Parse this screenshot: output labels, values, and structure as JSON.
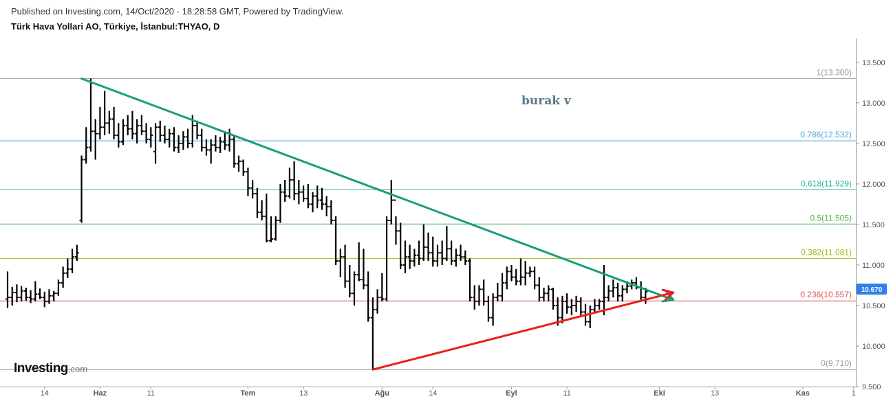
{
  "header": {
    "published": "Published on Investing.com, 14/Oct/2020 - 18:28:58 GMT, Powered by TradingView.",
    "symbol": "Türk Hava Yollari AO, Türkiye, İstanbul:THYAO, D"
  },
  "logo": {
    "main": "Investing",
    "suffix": ".com"
  },
  "author_label": "burak v",
  "colors": {
    "bars": "#000000",
    "trend_down": "#1a9e7c",
    "trend_up": "#e8211d",
    "price_tag": "#2f80ed",
    "axis": "#999999"
  },
  "chart_data": {
    "type": "ohlc",
    "title": "Türk Hava Yollari AO, Türkiye, İstanbul:THYAO, D",
    "ylim": [
      9.5,
      13.6
    ],
    "y_ticks": [
      "13.500",
      "13.000",
      "12.500",
      "12.000",
      "11.500",
      "11.000",
      "10.500",
      "10.000",
      "9.500"
    ],
    "x_ticks": [
      "14",
      "Haz",
      "11",
      "Tem",
      "13",
      "Ağu",
      "14",
      "Eyl",
      "11",
      "Eki",
      "13",
      "Kas",
      "1"
    ],
    "last_price": "10.670",
    "fibonacci": [
      {
        "label": "1(13.300)",
        "value": 13.3,
        "color": "#999999"
      },
      {
        "label": "0.786(12.532)",
        "value": 12.532,
        "color": "#4aa8d8"
      },
      {
        "label": "0.618(11.929)",
        "value": 11.929,
        "color": "#2bb39a"
      },
      {
        "label": "0.5(11.505)",
        "value": 11.505,
        "color": "#4caf50"
      },
      {
        "label": "0.382(11.081)",
        "value": 11.081,
        "color": "#a8b820"
      },
      {
        "label": "0.236(10.557)",
        "value": 10.557,
        "color": "#e05050"
      },
      {
        "label": "0(9.710)",
        "value": 9.71,
        "color": "#999999"
      }
    ],
    "trendlines": [
      {
        "name": "descending",
        "from": {
          "bar": 16,
          "price": 13.3
        },
        "to": {
          "bar": 144,
          "price": 10.57
        },
        "color": "#1a9e7c"
      },
      {
        "name": "ascending",
        "from": {
          "bar": 79,
          "price": 9.71
        },
        "to": {
          "bar": 144,
          "price": 10.66
        },
        "color": "#e8211d"
      }
    ],
    "bars": [
      [
        10.58,
        10.92,
        10.47,
        10.6
      ],
      [
        10.6,
        10.73,
        10.5,
        10.66
      ],
      [
        10.66,
        10.76,
        10.54,
        10.6
      ],
      [
        10.6,
        10.74,
        10.55,
        10.68
      ],
      [
        10.68,
        10.72,
        10.56,
        10.6
      ],
      [
        10.6,
        10.69,
        10.53,
        10.58
      ],
      [
        10.58,
        10.8,
        10.55,
        10.64
      ],
      [
        10.64,
        10.71,
        10.58,
        10.6
      ],
      [
        10.6,
        10.67,
        10.48,
        10.55
      ],
      [
        10.55,
        10.7,
        10.52,
        10.62
      ],
      [
        10.62,
        10.68,
        10.55,
        10.65
      ],
      [
        10.65,
        10.82,
        10.62,
        10.78
      ],
      [
        10.78,
        10.98,
        10.72,
        10.9
      ],
      [
        10.9,
        11.08,
        10.84,
        10.95
      ],
      [
        10.95,
        11.2,
        10.9,
        11.1
      ],
      [
        11.1,
        11.25,
        11.05,
        11.15
      ],
      [
        11.55,
        12.35,
        11.52,
        12.3
      ],
      [
        12.3,
        12.7,
        12.25,
        12.45
      ],
      [
        12.45,
        13.3,
        12.4,
        12.65
      ],
      [
        12.65,
        12.8,
        12.3,
        12.62
      ],
      [
        12.62,
        12.95,
        12.55,
        12.7
      ],
      [
        12.7,
        13.15,
        12.6,
        12.75
      ],
      [
        12.75,
        12.9,
        12.62,
        12.8
      ],
      [
        12.8,
        12.95,
        12.55,
        12.6
      ],
      [
        12.6,
        12.75,
        12.45,
        12.52
      ],
      [
        12.52,
        12.8,
        12.48,
        12.72
      ],
      [
        12.72,
        12.85,
        12.6,
        12.68
      ],
      [
        12.68,
        12.9,
        12.55,
        12.62
      ],
      [
        12.62,
        12.8,
        12.5,
        12.72
      ],
      [
        12.72,
        12.85,
        12.6,
        12.65
      ],
      [
        12.65,
        12.75,
        12.5,
        12.55
      ],
      [
        12.55,
        12.7,
        12.45,
        12.6
      ],
      [
        12.4,
        12.75,
        12.25,
        12.7
      ],
      [
        12.7,
        12.78,
        12.52,
        12.6
      ],
      [
        12.6,
        12.72,
        12.5,
        12.55
      ],
      [
        12.55,
        12.68,
        12.45,
        12.62
      ],
      [
        12.62,
        12.7,
        12.4,
        12.45
      ],
      [
        12.45,
        12.6,
        12.38,
        12.5
      ],
      [
        12.5,
        12.65,
        12.42,
        12.58
      ],
      [
        12.58,
        12.68,
        12.44,
        12.5
      ],
      [
        12.5,
        12.85,
        12.45,
        12.72
      ],
      [
        12.72,
        12.78,
        12.55,
        12.6
      ],
      [
        12.6,
        12.68,
        12.4,
        12.45
      ],
      [
        12.45,
        12.55,
        12.35,
        12.42
      ],
      [
        12.42,
        12.55,
        12.25,
        12.48
      ],
      [
        12.48,
        12.6,
        12.4,
        12.45
      ],
      [
        12.45,
        12.58,
        12.38,
        12.52
      ],
      [
        12.52,
        12.65,
        12.42,
        12.48
      ],
      [
        12.48,
        12.68,
        12.4,
        12.55
      ],
      [
        12.55,
        12.6,
        12.2,
        12.25
      ],
      [
        12.25,
        12.35,
        12.15,
        12.28
      ],
      [
        12.28,
        12.3,
        12.1,
        12.15
      ],
      [
        12.15,
        12.2,
        11.85,
        11.95
      ],
      [
        11.95,
        12.05,
        11.82,
        11.88
      ],
      [
        11.88,
        11.95,
        11.58,
        11.65
      ],
      [
        11.65,
        11.8,
        11.55,
        11.6
      ],
      [
        11.6,
        11.88,
        11.28,
        11.3
      ],
      [
        11.3,
        11.6,
        11.28,
        11.32
      ],
      [
        11.32,
        11.6,
        11.3,
        11.55
      ],
      [
        11.55,
        12.0,
        11.52,
        11.9
      ],
      [
        11.9,
        12.05,
        11.78,
        11.85
      ],
      [
        11.85,
        12.2,
        11.82,
        12.05
      ],
      [
        12.05,
        12.28,
        11.8,
        11.88
      ],
      [
        11.88,
        12.05,
        11.75,
        11.9
      ],
      [
        11.9,
        11.98,
        11.78,
        11.82
      ],
      [
        11.82,
        12.0,
        11.7,
        11.75
      ],
      [
        11.75,
        11.9,
        11.65,
        11.85
      ],
      [
        11.85,
        11.98,
        11.7,
        11.8
      ],
      [
        11.8,
        11.95,
        11.68,
        11.75
      ],
      [
        11.75,
        11.85,
        11.6,
        11.72
      ],
      [
        11.72,
        11.8,
        11.5,
        11.55
      ],
      [
        11.55,
        11.6,
        11.0,
        11.05
      ],
      [
        11.05,
        11.2,
        10.85,
        11.1
      ],
      [
        11.1,
        11.25,
        10.72,
        10.8
      ],
      [
        10.8,
        11.0,
        10.6,
        10.65
      ],
      [
        10.65,
        10.92,
        10.5,
        10.88
      ],
      [
        10.88,
        11.28,
        10.8,
        10.82
      ],
      [
        10.82,
        11.2,
        10.7,
        10.75
      ],
      [
        10.75,
        10.92,
        10.3,
        10.35
      ],
      [
        10.35,
        10.6,
        9.71,
        10.45
      ],
      [
        10.45,
        10.7,
        10.4,
        10.6
      ],
      [
        10.6,
        10.9,
        10.55,
        10.58
      ],
      [
        10.58,
        11.6,
        10.55,
        11.55
      ],
      [
        11.55,
        12.05,
        11.5,
        11.8
      ],
      [
        11.8,
        11.6,
        11.25,
        11.42
      ],
      [
        11.42,
        11.52,
        10.95,
        11.0
      ],
      [
        11.0,
        11.3,
        10.9,
        11.1
      ],
      [
        11.1,
        11.25,
        10.95,
        11.05
      ],
      [
        11.05,
        11.2,
        10.98,
        11.12
      ],
      [
        11.12,
        11.3,
        11.0,
        11.08
      ],
      [
        11.08,
        11.5,
        11.05,
        11.22
      ],
      [
        11.22,
        11.4,
        11.05,
        11.15
      ],
      [
        11.15,
        11.35,
        10.98,
        11.05
      ],
      [
        11.05,
        11.25,
        10.98,
        11.15
      ],
      [
        11.15,
        11.3,
        11.0,
        11.08
      ],
      [
        11.08,
        11.48,
        11.05,
        11.2
      ],
      [
        11.2,
        11.3,
        11.0,
        11.05
      ],
      [
        11.05,
        11.2,
        10.98,
        11.12
      ],
      [
        11.12,
        11.25,
        11.05,
        11.1
      ],
      [
        11.1,
        11.18,
        11.0,
        11.05
      ],
      [
        11.05,
        11.08,
        10.55,
        10.6
      ],
      [
        10.6,
        10.75,
        10.45,
        10.55
      ],
      [
        10.55,
        10.75,
        10.5,
        10.7
      ],
      [
        10.7,
        10.82,
        10.5,
        10.55
      ],
      [
        10.55,
        10.62,
        10.3,
        10.35
      ],
      [
        10.35,
        10.65,
        10.25,
        10.6
      ],
      [
        10.6,
        10.78,
        10.55,
        10.62
      ],
      [
        10.62,
        10.9,
        10.55,
        10.78
      ],
      [
        10.78,
        10.98,
        10.7,
        10.92
      ],
      [
        10.92,
        11.0,
        10.8,
        10.85
      ],
      [
        10.85,
        10.95,
        10.75,
        10.8
      ],
      [
        10.8,
        11.08,
        10.75,
        10.85
      ],
      [
        10.85,
        11.05,
        10.75,
        10.9
      ],
      [
        10.9,
        10.98,
        10.85,
        10.92
      ],
      [
        10.92,
        10.98,
        10.7,
        10.75
      ],
      [
        10.75,
        10.85,
        10.55,
        10.6
      ],
      [
        10.6,
        10.72,
        10.55,
        10.65
      ],
      [
        10.65,
        10.75,
        10.55,
        10.7
      ],
      [
        10.7,
        10.72,
        10.45,
        10.5
      ],
      [
        10.5,
        10.6,
        10.25,
        10.35
      ],
      [
        10.35,
        10.62,
        10.28,
        10.55
      ],
      [
        10.55,
        10.65,
        10.4,
        10.48
      ],
      [
        10.48,
        10.58,
        10.38,
        10.5
      ],
      [
        10.5,
        10.62,
        10.42,
        10.55
      ],
      [
        10.55,
        10.6,
        10.38,
        10.42
      ],
      [
        10.42,
        10.52,
        10.25,
        10.3
      ],
      [
        10.3,
        10.5,
        10.22,
        10.45
      ],
      [
        10.45,
        10.58,
        10.4,
        10.5
      ],
      [
        10.5,
        10.58,
        10.45,
        10.55
      ],
      [
        10.55,
        11.0,
        10.38,
        10.6
      ],
      [
        10.6,
        10.75,
        10.55,
        10.68
      ],
      [
        10.68,
        10.82,
        10.6,
        10.72
      ],
      [
        10.72,
        10.78,
        10.55,
        10.62
      ],
      [
        10.62,
        10.75,
        10.55,
        10.7
      ],
      [
        10.7,
        10.8,
        10.65,
        10.74
      ],
      [
        10.74,
        10.82,
        10.7,
        10.78
      ],
      [
        10.78,
        10.85,
        10.7,
        10.72
      ],
      [
        10.72,
        10.8,
        10.55,
        10.6
      ],
      [
        10.6,
        10.72,
        10.52,
        10.67
      ]
    ]
  }
}
